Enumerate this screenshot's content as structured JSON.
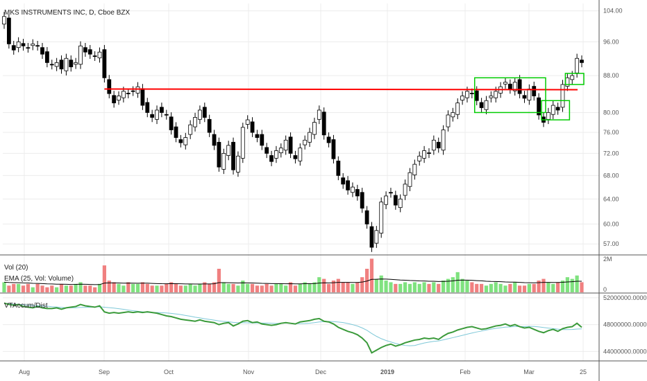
{
  "chart_data": {
    "type": "candlestick",
    "title": "MKS INSTRUMENTS INC, D, Cboe BZX",
    "x_ticks": [
      "Aug",
      "Sep",
      "Oct",
      "Nov",
      "Dec",
      "2019",
      "Feb",
      "Mar",
      "25"
    ],
    "price_axis": {
      "ticks": [
        "104.00",
        "96.00",
        "88.00",
        "80.00",
        "76.00",
        "72.00",
        "68.00",
        "64.00",
        "60.00",
        "57.00"
      ],
      "ylim": [
        55.5,
        106
      ],
      "scale": "log"
    },
    "closes": [
      102.5,
      95.5,
      94.0,
      96.0,
      95.0,
      94.5,
      95.5,
      95.0,
      93.0,
      91.0,
      90.5,
      91.0,
      89.5,
      92.0,
      90.0,
      91.0,
      95.0,
      93.5,
      93.0,
      92.5,
      93.5,
      87.5,
      84.0,
      82.0,
      83.5,
      84.5,
      84.0,
      84.5,
      85.5,
      81.5,
      80.0,
      79.0,
      80.5,
      80.0,
      79.5,
      76.5,
      75.0,
      74.0,
      75.0,
      77.5,
      79.0,
      80.5,
      79.0,
      76.0,
      73.5,
      69.5,
      72.0,
      73.5,
      69.0,
      71.5,
      77.0,
      78.5,
      76.0,
      75.0,
      73.5,
      72.0,
      70.5,
      72.5,
      73.0,
      74.5,
      72.0,
      71.0,
      73.0,
      74.5,
      76.0,
      78.0,
      80.5,
      75.5,
      74.0,
      71.0,
      68.0,
      66.5,
      65.5,
      66.0,
      64.5,
      62.5,
      60.0,
      56.5,
      59.0,
      63.5,
      64.5,
      65.0,
      63.0,
      64.0,
      66.5,
      68.5,
      70.0,
      71.5,
      72.5,
      72.0,
      74.5,
      73.0,
      76.5,
      79.5,
      80.0,
      82.0,
      83.5,
      84.5,
      84.0,
      82.5,
      81.0,
      82.5,
      83.5,
      84.5,
      85.5,
      86.5,
      85.0,
      86.5,
      84.0,
      83.0,
      85.0,
      83.5,
      79.5,
      78.0,
      80.0,
      81.5,
      80.5,
      86.0,
      87.5,
      88.0,
      92.0,
      91.0
    ],
    "volume_axis": {
      "ticks": [
        "2M",
        "0"
      ]
    },
    "volumes": [
      0.6,
      0.4,
      0.5,
      0.5,
      0.4,
      0.5,
      0.3,
      0.5,
      0.4,
      0.3,
      0.4,
      0.3,
      0.5,
      0.4,
      0.4,
      0.5,
      0.6,
      0.4,
      0.4,
      0.3,
      0.5,
      1.6,
      0.7,
      0.6,
      0.5,
      0.4,
      0.6,
      0.5,
      0.5,
      0.6,
      0.5,
      0.4,
      0.4,
      0.4,
      0.5,
      0.6,
      0.5,
      0.4,
      0.4,
      0.5,
      0.4,
      0.5,
      0.6,
      0.5,
      0.6,
      1.4,
      0.6,
      0.5,
      0.5,
      0.4,
      0.7,
      0.5,
      0.5,
      0.4,
      0.4,
      0.5,
      0.4,
      0.5,
      0.5,
      0.4,
      0.6,
      0.4,
      0.5,
      0.6,
      0.5,
      0.6,
      0.9,
      0.8,
      0.5,
      0.7,
      0.8,
      0.6,
      0.6,
      0.5,
      0.6,
      0.9,
      1.4,
      2.0,
      0.8,
      1.0,
      0.7,
      0.6,
      0.5,
      0.5,
      0.6,
      0.5,
      0.6,
      0.5,
      0.6,
      0.5,
      0.6,
      0.5,
      0.7,
      0.8,
      0.9,
      1.2,
      0.8,
      0.7,
      0.6,
      0.5,
      0.5,
      0.4,
      0.5,
      0.6,
      0.5,
      0.4,
      0.5,
      0.6,
      0.4,
      0.4,
      0.5,
      0.5,
      0.7,
      0.8,
      0.6,
      0.5,
      0.6,
      0.7,
      0.9,
      0.8,
      1.0,
      0.6
    ],
    "accum_axis": {
      "ticks": [
        "52000000.0000",
        "48000000.0000",
        "44000000.0000"
      ],
      "ylim": [
        42600000,
        52600000
      ]
    },
    "accum_line": [
      51200000,
      51000000,
      50900000,
      51000000,
      50700000,
      50600000,
      50500000,
      50700000,
      50500000,
      50400000,
      50400000,
      50500000,
      50300000,
      50500000,
      50600000,
      50700000,
      51000000,
      50800000,
      50700000,
      50600000,
      50800000,
      49900000,
      49700000,
      49800000,
      49700000,
      49800000,
      49900000,
      49800000,
      49900000,
      49800000,
      49900000,
      49800000,
      49700000,
      49500000,
      49300000,
      49200000,
      49000000,
      48800000,
      48700000,
      48600000,
      48500000,
      48700000,
      48500000,
      48400000,
      48300000,
      48000000,
      48200000,
      48300000,
      47800000,
      48100000,
      48500000,
      48600000,
      48300000,
      48400000,
      48100000,
      48000000,
      47900000,
      48000000,
      48200000,
      48300000,
      48200000,
      48100000,
      48400000,
      48500000,
      48600000,
      48800000,
      48900000,
      48500000,
      48400000,
      48100000,
      47600000,
      47300000,
      47000000,
      46800000,
      46500000,
      46000000,
      45300000,
      43800000,
      44200000,
      44600000,
      44900000,
      45100000,
      44800000,
      45000000,
      45300000,
      45500000,
      45700000,
      45800000,
      46000000,
      45900000,
      46000000,
      45800000,
      46300000,
      46700000,
      46900000,
      47200000,
      47400000,
      47600000,
      47700000,
      47500000,
      47300000,
      47400000,
      47600000,
      47800000,
      47900000,
      48100000,
      47800000,
      48000000,
      47700000,
      47500000,
      47600000,
      47300000,
      47000000,
      46800000,
      47100000,
      47300000,
      47000000,
      47400000,
      47600000,
      47700000,
      48200000,
      47600000
    ],
    "pane_titles": {
      "volume": "Vol (20)",
      "volume_ema": "EMA (25, Vol: Volume)",
      "accum": "VTAccum/Dist"
    },
    "annotations": {
      "resistance_line": {
        "price": 85.0,
        "color": "#ff0000"
      },
      "boxes": [
        {
          "from": 99,
          "to": 113,
          "low": 80.0,
          "high": 87.5,
          "color": "#00cc00"
        },
        {
          "from": 113,
          "to": 118,
          "low": 78.5,
          "high": 82.5,
          "color": "#00cc00"
        },
        {
          "from": 118,
          "to": 121,
          "low": 86.0,
          "high": 88.5,
          "color": "#00cc00"
        }
      ]
    },
    "colors": {
      "candle": "#000000",
      "vol_up": "#7fe27f",
      "vol_down": "#f08080",
      "vol_ema": "#000000",
      "accum": "#3a9a3a",
      "accum_ma": "#7ec8d8",
      "grid": "#ececec",
      "border": "#555555"
    }
  }
}
